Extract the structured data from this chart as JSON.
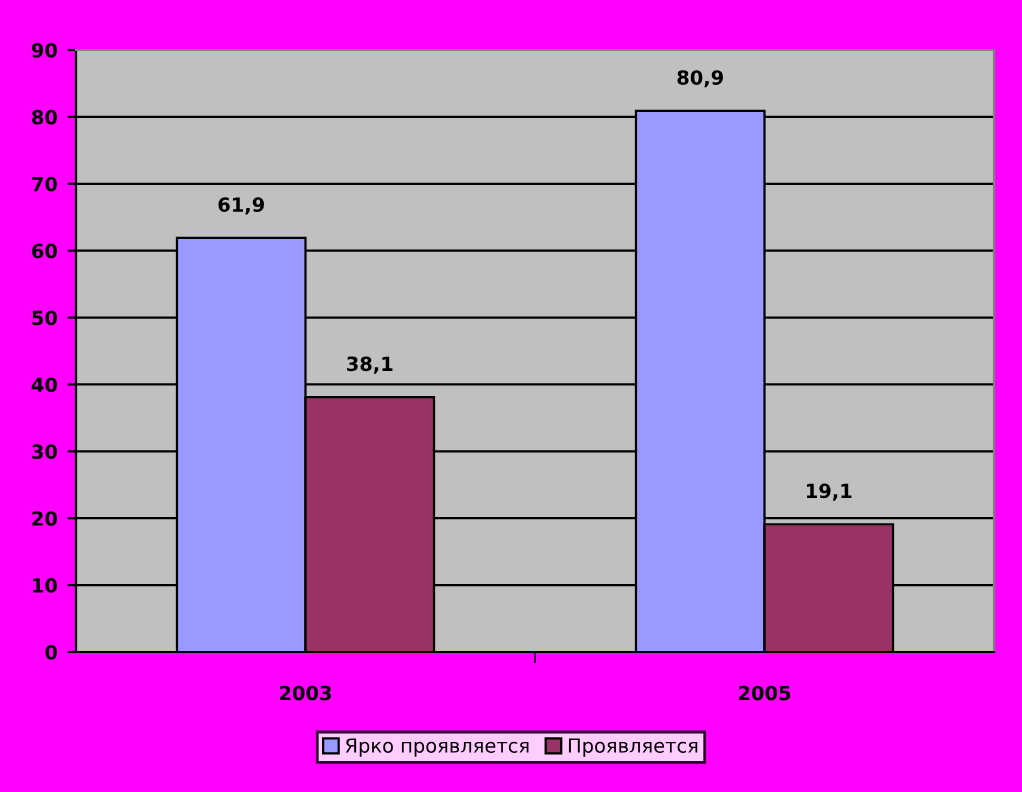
{
  "chart_data": {
    "type": "bar",
    "categories": [
      "2003",
      "2005"
    ],
    "series": [
      {
        "name": "Ярко проявляется",
        "color": "#9999ff",
        "values": [
          61.9,
          80.9
        ],
        "value_labels": [
          "61,9",
          "80,9"
        ]
      },
      {
        "name": "Проявляется",
        "color": "#993366",
        "values": [
          38.1,
          19.1
        ],
        "value_labels": [
          "38,1",
          "19,1"
        ]
      }
    ],
    "ylim": [
      0,
      90
    ],
    "yticks": [
      0,
      10,
      20,
      30,
      40,
      50,
      60,
      70,
      80,
      90
    ],
    "grid": "y",
    "legend": "bottom"
  }
}
